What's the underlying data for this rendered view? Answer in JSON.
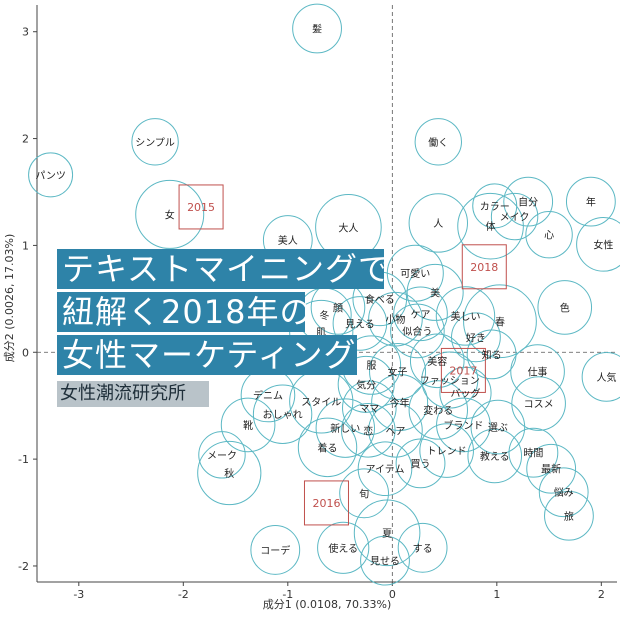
{
  "chart_data": {
    "type": "scatter",
    "xlabel": "成分1 (0.0108, 70.33%)",
    "ylabel": "成分2 (0.0026, 17.03%)",
    "xlim": [
      -3.4,
      2.15
    ],
    "ylim": [
      -2.15,
      3.25
    ],
    "x_ticks": [
      -3,
      -2,
      -1,
      0,
      1,
      2
    ],
    "y_ticks": [
      -2,
      -1,
      0,
      1,
      2,
      3
    ],
    "reference_lines": {
      "x": 0,
      "y": 0
    },
    "circle_color": "#5cb8c4",
    "year_color": "#c0504d",
    "words": [
      {
        "label": "髪",
        "x": -0.72,
        "y": 3.03,
        "size": 0.6
      },
      {
        "label": "シンプル",
        "x": -2.27,
        "y": 1.97,
        "size": 0.55
      },
      {
        "label": "働く",
        "x": 0.44,
        "y": 1.97,
        "size": 0.55
      },
      {
        "label": "パンツ",
        "x": -3.27,
        "y": 1.66,
        "size": 0.5
      },
      {
        "label": "女",
        "x": -2.13,
        "y": 1.29,
        "size": 1.0
      },
      {
        "label": "自分",
        "x": 1.3,
        "y": 1.41,
        "size": 0.6
      },
      {
        "label": "年",
        "x": 1.9,
        "y": 1.41,
        "size": 0.6
      },
      {
        "label": "カラー",
        "x": 0.98,
        "y": 1.37,
        "size": 0.5
      },
      {
        "label": "メイク",
        "x": 1.17,
        "y": 1.27,
        "size": 0.55
      },
      {
        "label": "人",
        "x": 0.44,
        "y": 1.21,
        "size": 0.8
      },
      {
        "label": "体",
        "x": 0.94,
        "y": 1.18,
        "size": 0.95
      },
      {
        "label": "大人",
        "x": -0.42,
        "y": 1.17,
        "size": 0.95
      },
      {
        "label": "心",
        "x": 1.5,
        "y": 1.1,
        "size": 0.55
      },
      {
        "label": "女性",
        "x": 2.02,
        "y": 1.01,
        "size": 0.7
      },
      {
        "label": "美人",
        "x": -1.0,
        "y": 1.05,
        "size": 0.6
      },
      {
        "label": "可愛い",
        "x": 0.22,
        "y": 0.74,
        "size": 0.75
      },
      {
        "label": "美",
        "x": 0.41,
        "y": 0.56,
        "size": 0.75
      },
      {
        "label": "食べる",
        "x": -0.12,
        "y": 0.5,
        "size": 0.7
      },
      {
        "label": "顔",
        "x": -0.52,
        "y": 0.42,
        "size": 0.7
      },
      {
        "label": "色",
        "x": 1.65,
        "y": 0.42,
        "size": 0.7
      },
      {
        "label": "ケア",
        "x": 0.27,
        "y": 0.36,
        "size": 0.7
      },
      {
        "label": "冬",
        "x": -0.65,
        "y": 0.35,
        "size": 0.7
      },
      {
        "label": "美しい",
        "x": 0.7,
        "y": 0.34,
        "size": 0.8
      },
      {
        "label": "小物",
        "x": 0.03,
        "y": 0.31,
        "size": 0.7
      },
      {
        "label": "見える",
        "x": -0.31,
        "y": 0.27,
        "size": 0.7
      },
      {
        "label": "春",
        "x": 1.03,
        "y": 0.29,
        "size": 1.1
      },
      {
        "label": "肌",
        "x": -0.68,
        "y": 0.19,
        "size": 0.9
      },
      {
        "label": "似合う",
        "x": 0.24,
        "y": 0.2,
        "size": 0.7
      },
      {
        "label": "好き",
        "x": 0.8,
        "y": 0.14,
        "size": 0.6
      },
      {
        "label": "知る",
        "x": 0.95,
        "y": -0.02,
        "size": 0.6
      },
      {
        "label": "美容",
        "x": 0.43,
        "y": -0.08,
        "size": 0.7
      },
      {
        "label": "服",
        "x": -0.2,
        "y": -0.12,
        "size": 0.8
      },
      {
        "label": "女子",
        "x": 0.05,
        "y": -0.18,
        "size": 0.75
      },
      {
        "label": "仕事",
        "x": 1.39,
        "y": -0.18,
        "size": 0.7
      },
      {
        "label": "人気",
        "x": 2.05,
        "y": -0.23,
        "size": 0.6
      },
      {
        "label": "ファッション",
        "x": 0.55,
        "y": -0.26,
        "size": 0.75
      },
      {
        "label": "気分",
        "x": -0.25,
        "y": -0.3,
        "size": 0.75
      },
      {
        "label": "バッグ",
        "x": 0.7,
        "y": -0.38,
        "size": 0.65
      },
      {
        "label": "デニム",
        "x": -1.19,
        "y": -0.4,
        "size": 0.7
      },
      {
        "label": "スタイル",
        "x": -0.68,
        "y": -0.46,
        "size": 0.9
      },
      {
        "label": "今年",
        "x": 0.07,
        "y": -0.47,
        "size": 0.75
      },
      {
        "label": "コスメ",
        "x": 1.4,
        "y": -0.48,
        "size": 0.7
      },
      {
        "label": "ママ",
        "x": -0.22,
        "y": -0.52,
        "size": 0.7
      },
      {
        "label": "変わる",
        "x": 0.44,
        "y": -0.54,
        "size": 0.8
      },
      {
        "label": "おしゃれ",
        "x": -1.05,
        "y": -0.58,
        "size": 0.8
      },
      {
        "label": "靴",
        "x": -1.38,
        "y": -0.68,
        "size": 0.7
      },
      {
        "label": "ブランド",
        "x": 0.68,
        "y": -0.68,
        "size": 0.7
      },
      {
        "label": "選ぶ",
        "x": 1.01,
        "y": -0.7,
        "size": 0.7
      },
      {
        "label": "新しい",
        "x": -0.45,
        "y": -0.71,
        "size": 0.8
      },
      {
        "label": "恋",
        "x": -0.23,
        "y": -0.73,
        "size": 0.7
      },
      {
        "label": "ヘア",
        "x": 0.03,
        "y": -0.73,
        "size": 0.7
      },
      {
        "label": "着る",
        "x": -0.62,
        "y": -0.89,
        "size": 0.8
      },
      {
        "label": "時間",
        "x": 1.35,
        "y": -0.94,
        "size": 0.6
      },
      {
        "label": "トレンド",
        "x": 0.52,
        "y": -0.92,
        "size": 0.7
      },
      {
        "label": "教える",
        "x": 0.98,
        "y": -0.97,
        "size": 0.7
      },
      {
        "label": "メーク",
        "x": -1.63,
        "y": -0.96,
        "size": 0.55
      },
      {
        "label": "買う",
        "x": 0.27,
        "y": -1.04,
        "size": 0.6
      },
      {
        "label": "最新",
        "x": 1.52,
        "y": -1.09,
        "size": 0.6
      },
      {
        "label": "アイテム",
        "x": -0.07,
        "y": -1.09,
        "size": 0.7
      },
      {
        "label": "秋",
        "x": -1.56,
        "y": -1.13,
        "size": 0.9
      },
      {
        "label": "悩み",
        "x": 1.64,
        "y": -1.31,
        "size": 0.6
      },
      {
        "label": "旬",
        "x": -0.27,
        "y": -1.32,
        "size": 0.6
      },
      {
        "label": "旅",
        "x": 1.69,
        "y": -1.53,
        "size": 0.6
      },
      {
        "label": "夏",
        "x": -0.05,
        "y": -1.69,
        "size": 0.95
      },
      {
        "label": "コーデ",
        "x": -1.12,
        "y": -1.85,
        "size": 0.6
      },
      {
        "label": "使える",
        "x": -0.47,
        "y": -1.83,
        "size": 0.65
      },
      {
        "label": "する",
        "x": 0.29,
        "y": -1.83,
        "size": 0.6
      },
      {
        "label": "見せる",
        "x": -0.07,
        "y": -1.95,
        "size": 0.6
      }
    ],
    "years": [
      {
        "label": "2015",
        "x": -1.83,
        "y": 1.36
      },
      {
        "label": "2016",
        "x": -0.63,
        "y": -1.41
      },
      {
        "label": "2017",
        "x": 0.68,
        "y": -0.17
      },
      {
        "label": "2018",
        "x": 0.88,
        "y": 0.8
      }
    ]
  },
  "overlay": {
    "title_lines": [
      "テキストマイニングで",
      "紐解く2018年の",
      "女性マーケティング"
    ],
    "subtitle": "女性潮流研究所",
    "band_color": "#2e83a8",
    "subtitle_band_color": "#b9c3c9"
  }
}
